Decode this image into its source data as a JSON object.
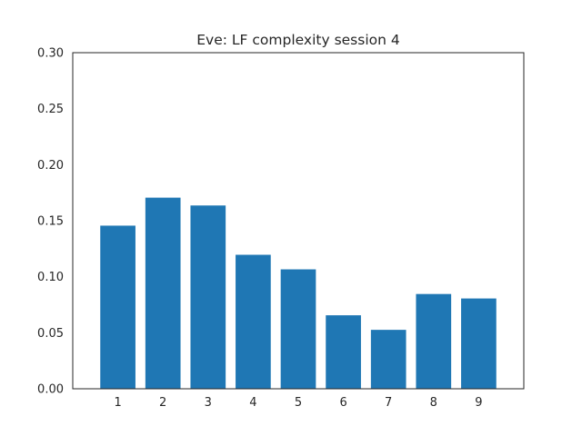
{
  "chart_data": {
    "type": "bar",
    "title": "Eve: LF complexity session 4",
    "xlabel": "",
    "ylabel": "",
    "categories": [
      "1",
      "2",
      "3",
      "4",
      "5",
      "6",
      "7",
      "8",
      "9"
    ],
    "values": [
      0.146,
      0.171,
      0.164,
      0.12,
      0.107,
      0.066,
      0.053,
      0.085,
      0.081
    ],
    "ylim": [
      0,
      0.3
    ],
    "yticks": [
      "0.00",
      "0.05",
      "0.10",
      "0.15",
      "0.20",
      "0.25",
      "0.30"
    ],
    "grid": false,
    "legend": "none",
    "bar_color": "#1f77b4",
    "axis_color": "#262626"
  }
}
